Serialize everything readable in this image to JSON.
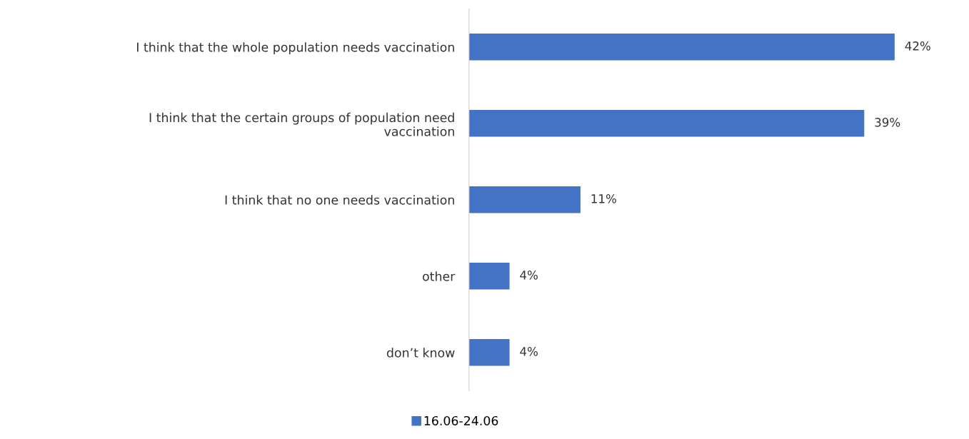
{
  "chart_data": {
    "type": "bar",
    "orientation": "horizontal",
    "categories": [
      "I think that the whole population needs vaccination",
      "I think that the certain groups of population need\nvaccination",
      "I think that no one needs vaccination",
      "other",
      "don’t know"
    ],
    "series": [
      {
        "name": "16.06-24.06",
        "color": "#4472c4",
        "values": [
          42,
          39,
          11,
          4,
          4
        ],
        "value_labels": [
          "42%",
          "39%",
          "11%",
          "4%",
          "4%"
        ]
      }
    ],
    "legend": "bottom"
  }
}
